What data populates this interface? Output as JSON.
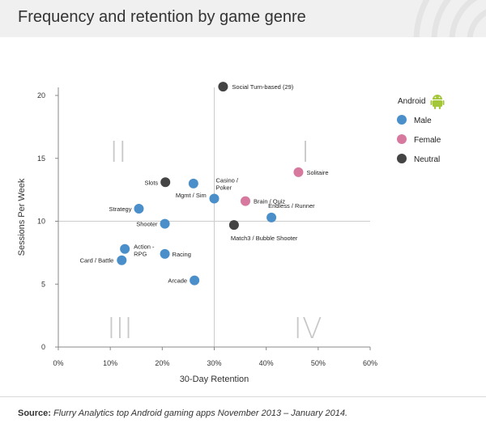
{
  "page": {
    "title": "Frequency and retention by game genre",
    "source_label": "Source:",
    "source_text": "Flurry Analytics top Android gaming apps November 2013 – January 2014."
  },
  "chart_data": {
    "type": "scatter",
    "title": "Frequency and retention by game genre",
    "xlabel": "30-Day Retention",
    "ylabel": "Sessions Per Week",
    "xlim": [
      0,
      60
    ],
    "ylim": [
      0,
      21
    ],
    "x_ticks": [
      0,
      10,
      20,
      30,
      40,
      50,
      60
    ],
    "x_tick_labels": [
      "0%",
      "10%",
      "20%",
      "30%",
      "40%",
      "50%",
      "60%"
    ],
    "y_ticks": [
      0,
      5,
      10,
      15,
      20
    ],
    "y_tick_labels": [
      "0",
      "5",
      "10",
      "15",
      "20"
    ],
    "grid": false,
    "legend": {
      "title": "Android",
      "position": "top-right",
      "entries": [
        {
          "name": "Male",
          "color": "#4a8fca"
        },
        {
          "name": "Female",
          "color": "#d7799f"
        },
        {
          "name": "Neutral",
          "color": "#444444"
        }
      ]
    },
    "quadrant_dividers": {
      "x": 30,
      "y": 10
    },
    "quadrant_labels": [
      "I",
      "II",
      "III",
      "IV"
    ],
    "series": [
      {
        "name": "Male",
        "color": "#4a8fca",
        "points": [
          {
            "label": "Mgmt / Sim",
            "x": 26.0,
            "y": 13.0
          },
          {
            "label": "Casino / Poker",
            "x": 30.0,
            "y": 11.8
          },
          {
            "label": "Strategy",
            "x": 15.5,
            "y": 11.0
          },
          {
            "label": "Shooter",
            "x": 20.5,
            "y": 9.8
          },
          {
            "label": "Endless / Runner",
            "x": 41.0,
            "y": 10.3
          },
          {
            "label": "Action - RPG",
            "x": 12.8,
            "y": 7.8
          },
          {
            "label": "Card / Battle",
            "x": 12.2,
            "y": 6.9
          },
          {
            "label": "Racing",
            "x": 20.5,
            "y": 7.4
          },
          {
            "label": "Arcade",
            "x": 26.2,
            "y": 5.3
          }
        ]
      },
      {
        "name": "Female",
        "color": "#d7799f",
        "points": [
          {
            "label": "Solitaire",
            "x": 46.2,
            "y": 13.9
          },
          {
            "label": "Brain / Quiz",
            "x": 36.0,
            "y": 11.6
          }
        ]
      },
      {
        "name": "Neutral",
        "color": "#444444",
        "points": [
          {
            "label": "Social Turn-based (29)",
            "x": 31.7,
            "y": 20.7
          },
          {
            "label": "Slots",
            "x": 20.6,
            "y": 13.1
          },
          {
            "label": "Match3 / Bubble Shooter",
            "x": 33.8,
            "y": 9.7
          }
        ]
      }
    ]
  }
}
